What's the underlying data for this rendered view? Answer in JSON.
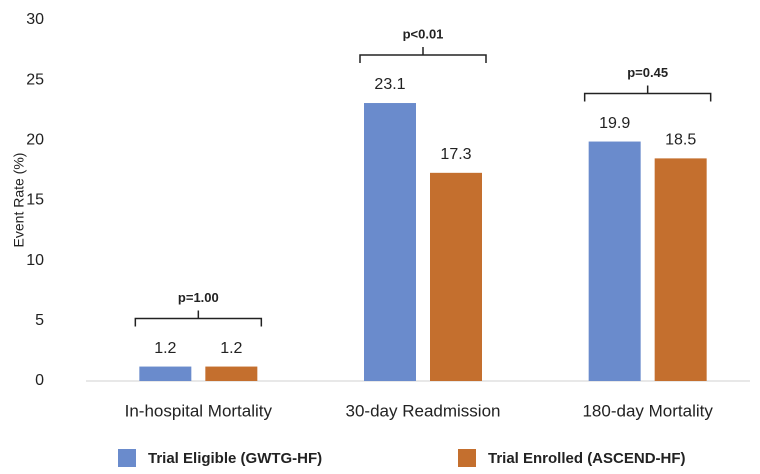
{
  "chart_data": {
    "type": "bar",
    "y_label": "Event Rate (%)",
    "categories": [
      "In-hospital Mortality",
      "30-day Readmission",
      "180-day Mortality"
    ],
    "series": [
      {
        "name": "Trial Eligible (GWTG-HF)",
        "color": "#6a8bcc",
        "values": [
          1.2,
          23.1,
          19.9
        ]
      },
      {
        "name": "Trial Enrolled (ASCEND-HF)",
        "color": "#c46f2e",
        "values": [
          1.2,
          17.3,
          18.5
        ]
      }
    ],
    "annotations": [
      "p=1.00",
      "p<0.01",
      "p=0.45"
    ],
    "ylim": [
      0,
      30
    ],
    "yticks": [
      0,
      5,
      10,
      15,
      20,
      25,
      30
    ],
    "grid": false,
    "legend": "bottom"
  }
}
